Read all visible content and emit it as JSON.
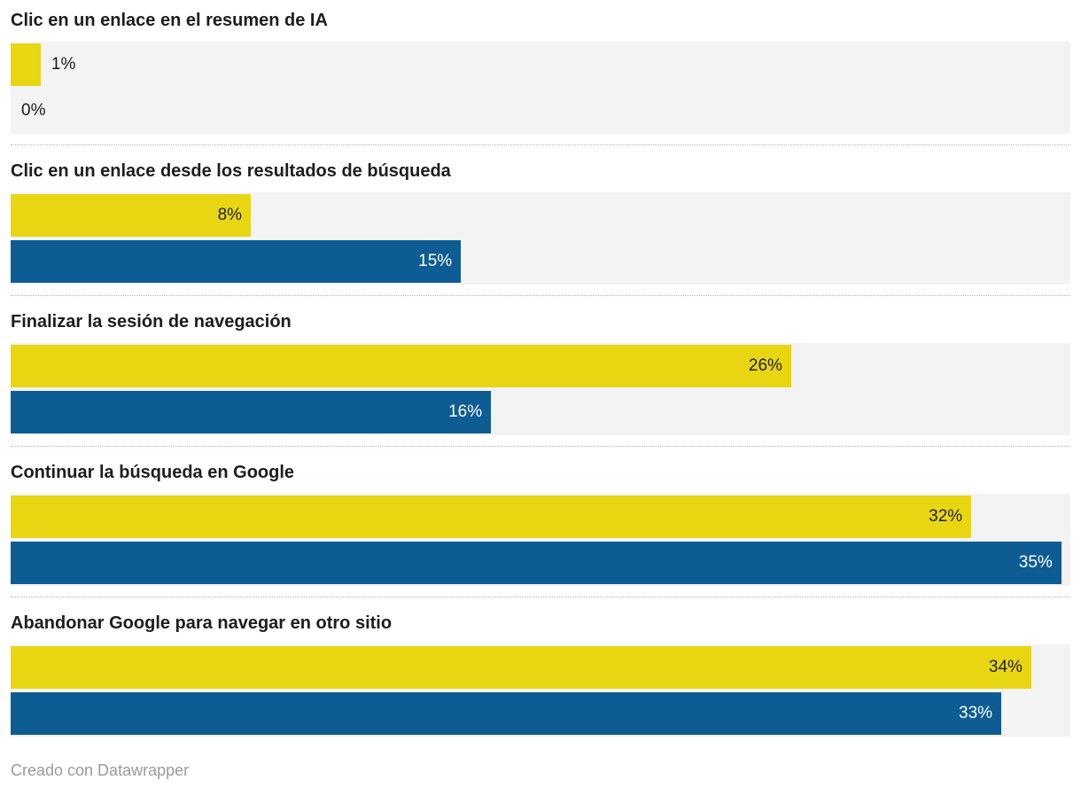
{
  "chart_data": {
    "type": "bar",
    "orientation": "horizontal",
    "categories": [
      "Clic en un enlace en el resumen de IA",
      "Clic en un enlace desde los resultados de búsqueda",
      "Finalizar la sesión de navegación",
      "Continuar la búsqueda en Google",
      "Abandonar Google para navegar en otro sitio"
    ],
    "series": [
      {
        "name": "yellow-series",
        "color": "#e8d612",
        "label_color": "#1f1f1f",
        "values": [
          1,
          8,
          26,
          32,
          34
        ]
      },
      {
        "name": "blue-series",
        "color": "#0d5c94",
        "label_color": "#ffffff",
        "values": [
          0,
          15,
          16,
          35,
          33
        ]
      }
    ],
    "value_labels": [
      [
        "1%",
        "0%"
      ],
      [
        "8%",
        "15%"
      ],
      [
        "26%",
        "16%"
      ],
      [
        "32%",
        "35%"
      ],
      [
        "34%",
        "33%"
      ]
    ],
    "xlim": [
      0,
      35.3
    ],
    "track_color": "#f3f3f3",
    "grid": false,
    "legend": "none"
  },
  "footer": {
    "credit": "Creado con Datawrapper"
  }
}
